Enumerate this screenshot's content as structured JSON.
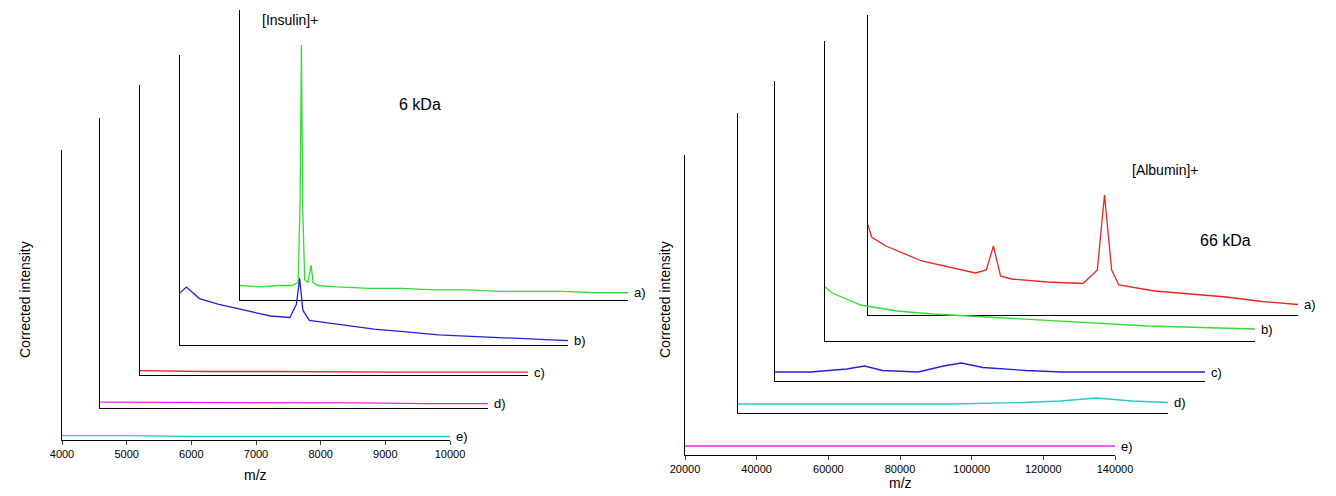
{
  "chart_data": [
    {
      "type": "line",
      "x_label": "m/z",
      "y_label": "Corrected intensity",
      "annotations": [
        "[Insulin]+",
        "6 kDa"
      ],
      "xlim": [
        4000,
        10000
      ],
      "xticks": [
        4000,
        5000,
        6000,
        7000,
        8000,
        9000,
        10000
      ],
      "ylim": [
        0,
        10
      ],
      "tick_labels": "x",
      "grid": false,
      "series": [
        {
          "name": "a)",
          "color": "#33dd33",
          "x": [
            4000,
            4300,
            4600,
            4800,
            4900,
            4930,
            4950,
            4970,
            5000,
            5050,
            5100,
            5130,
            5200,
            5500,
            6000,
            6500,
            7000,
            7500,
            8000,
            8500,
            9000,
            9500,
            10000
          ],
          "values": [
            0.5,
            0.45,
            0.5,
            0.5,
            0.6,
            3.5,
            8.8,
            3.2,
            0.7,
            0.6,
            1.2,
            0.6,
            0.5,
            0.45,
            0.4,
            0.4,
            0.35,
            0.35,
            0.3,
            0.3,
            0.3,
            0.25,
            0.25
          ]
        },
        {
          "name": "b)",
          "color": "#2222dd",
          "x": [
            4000,
            4100,
            4300,
            4600,
            5000,
            5400,
            5700,
            5800,
            5850,
            5900,
            6000,
            6500,
            7000,
            7500,
            8000,
            8500,
            9000,
            9500,
            10000
          ],
          "values": [
            1.8,
            2.0,
            1.6,
            1.4,
            1.2,
            1.0,
            0.95,
            1.4,
            2.3,
            1.2,
            0.85,
            0.7,
            0.55,
            0.45,
            0.35,
            0.3,
            0.25,
            0.2,
            0.15
          ]
        },
        {
          "name": "c)",
          "color": "#ee2222",
          "x": [
            4000,
            5000,
            6000,
            7000,
            8000,
            9000,
            10000
          ],
          "values": [
            0.15,
            0.12,
            0.12,
            0.1,
            0.1,
            0.1,
            0.1
          ]
        },
        {
          "name": "d)",
          "color": "#ee22ee",
          "x": [
            4000,
            5000,
            6000,
            7000,
            8000,
            9000,
            10000
          ],
          "values": [
            0.2,
            0.2,
            0.18,
            0.18,
            0.18,
            0.15,
            0.15
          ]
        },
        {
          "name": "e)",
          "color": "#22cccc",
          "x": [
            4000,
            5000,
            6000,
            7000,
            8000,
            9000,
            10000
          ],
          "values": [
            0.15,
            0.15,
            0.12,
            0.12,
            0.12,
            0.12,
            0.12
          ]
        }
      ]
    },
    {
      "type": "line",
      "x_label": "m/z",
      "y_label": "Corrected intensity",
      "annotations": [
        "[Albumin]+",
        "66 kDa"
      ],
      "xlim": [
        20000,
        140000
      ],
      "xticks": [
        20000,
        40000,
        60000,
        80000,
        100000,
        120000,
        140000
      ],
      "ylim": [
        0,
        10
      ],
      "tick_labels": "x",
      "grid": false,
      "series": [
        {
          "name": "a)",
          "color": "#ee2222",
          "x": [
            20000,
            21000,
            25000,
            35000,
            50000,
            53000,
            55000,
            57000,
            60000,
            70000,
            80000,
            84000,
            86000,
            88000,
            90000,
            100000,
            110000,
            120000,
            130000,
            140000
          ],
          "values": [
            3.0,
            2.6,
            2.3,
            1.8,
            1.4,
            1.5,
            2.3,
            1.3,
            1.2,
            1.1,
            1.05,
            1.5,
            4.0,
            1.5,
            1.0,
            0.8,
            0.7,
            0.6,
            0.45,
            0.35
          ]
        },
        {
          "name": "b)",
          "color": "#33dd33",
          "x": [
            20000,
            22000,
            30000,
            40000,
            50000,
            65000,
            80000,
            95000,
            110000,
            125000,
            140000
          ],
          "values": [
            1.8,
            1.6,
            1.2,
            1.0,
            0.9,
            0.8,
            0.7,
            0.6,
            0.5,
            0.45,
            0.4
          ]
        },
        {
          "name": "c)",
          "color": "#2222dd",
          "x": [
            20000,
            30000,
            40000,
            45000,
            50000,
            60000,
            67000,
            72000,
            78000,
            90000,
            100000,
            110000,
            120000,
            130000,
            140000
          ],
          "values": [
            0.3,
            0.3,
            0.4,
            0.5,
            0.35,
            0.3,
            0.5,
            0.6,
            0.45,
            0.35,
            0.3,
            0.3,
            0.3,
            0.3,
            0.3
          ]
        },
        {
          "name": "d)",
          "color": "#22cccc",
          "x": [
            20000,
            40000,
            60000,
            80000,
            100000,
            110000,
            120000,
            130000,
            140000
          ],
          "values": [
            0.3,
            0.3,
            0.3,
            0.3,
            0.35,
            0.4,
            0.5,
            0.4,
            0.35
          ]
        },
        {
          "name": "e)",
          "color": "#ee22ee",
          "x": [
            20000,
            40000,
            60000,
            80000,
            100000,
            120000,
            140000
          ],
          "values": [
            0.3,
            0.3,
            0.3,
            0.3,
            0.3,
            0.3,
            0.3
          ]
        }
      ]
    }
  ]
}
